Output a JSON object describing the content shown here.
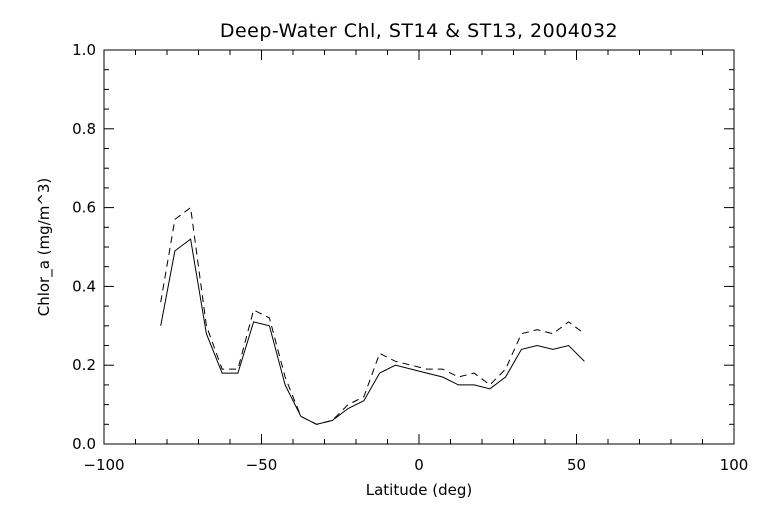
{
  "chart_data": {
    "type": "line",
    "title": "Deep-Water Chl, ST14 & ST13, 2004032",
    "xlabel": "Latitude (deg)",
    "ylabel": "Chlor_a (mg/m^3)",
    "xlim": [
      -100,
      100
    ],
    "ylim": [
      0.0,
      1.0
    ],
    "xticks": [
      -100,
      -50,
      0,
      50,
      100
    ],
    "xtick_labels": [
      "−100",
      "−50",
      "0",
      "50",
      "100"
    ],
    "yticks": [
      0.0,
      0.2,
      0.4,
      0.6,
      0.8,
      1.0
    ],
    "ytick_labels": [
      "0.0",
      "0.2",
      "0.4",
      "0.6",
      "0.8",
      "1.0"
    ],
    "grid": false,
    "series": [
      {
        "style": "solid",
        "x": [
          -82,
          -77.5,
          -72.5,
          -67.5,
          -62.5,
          -57.5,
          -52.5,
          -47.5,
          -42.5,
          -37.5,
          -32.5,
          -27.5,
          -22.5,
          -17.5,
          -12.5,
          -7.5,
          -2.5,
          2.5,
          7.5,
          12.5,
          17.5,
          22.5,
          27.5,
          32.5,
          37.5,
          42.5,
          47.5,
          52.5
        ],
        "values": [
          0.3,
          0.49,
          0.52,
          0.28,
          0.18,
          0.18,
          0.31,
          0.3,
          0.15,
          0.07,
          0.05,
          0.06,
          0.09,
          0.11,
          0.18,
          0.2,
          0.19,
          0.18,
          0.17,
          0.15,
          0.15,
          0.14,
          0.17,
          0.24,
          0.25,
          0.24,
          0.25,
          0.21
        ]
      },
      {
        "style": "dashed",
        "x": [
          -82,
          -77.5,
          -72.5,
          -67.5,
          -62.5,
          -57.5,
          -52.5,
          -47.5,
          -42.5,
          -37.5,
          -32.5,
          -27.5,
          -22.5,
          -17.5,
          -12.5,
          -7.5,
          -2.5,
          2.5,
          7.5,
          12.5,
          17.5,
          22.5,
          27.5,
          32.5,
          37.5,
          42.5,
          47.5,
          52.5
        ],
        "values": [
          0.36,
          0.57,
          0.6,
          0.3,
          0.19,
          0.19,
          0.34,
          0.32,
          0.17,
          0.07,
          0.05,
          0.06,
          0.1,
          0.12,
          0.23,
          0.21,
          0.2,
          0.19,
          0.19,
          0.17,
          0.18,
          0.15,
          0.19,
          0.28,
          0.29,
          0.28,
          0.31,
          0.28
        ]
      }
    ]
  }
}
